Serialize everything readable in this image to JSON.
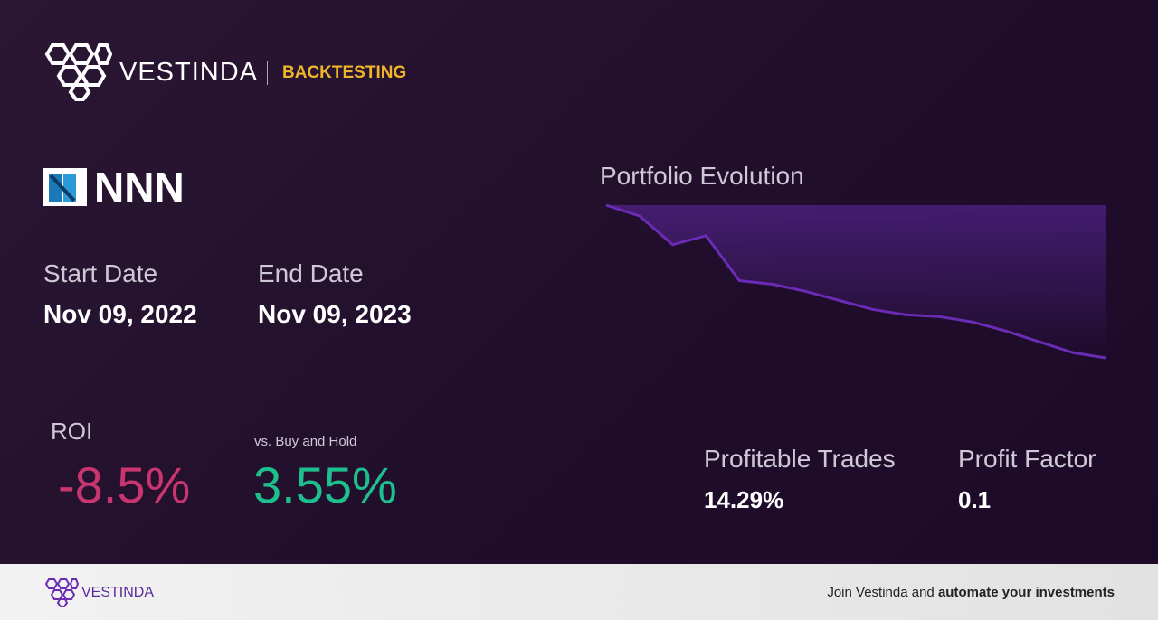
{
  "header": {
    "brand": "VESTINDA",
    "section": "BACKTESTING"
  },
  "ticker": "NNN",
  "start_date": {
    "label": "Start Date",
    "value": "Nov 09, 2022"
  },
  "end_date": {
    "label": "End Date",
    "value": "Nov 09, 2023"
  },
  "roi": {
    "label": "ROI",
    "value": "-8.5%"
  },
  "buy_hold": {
    "label": "vs. Buy and Hold",
    "value": "3.55%"
  },
  "chart_data": {
    "type": "area",
    "title": "Portfolio Evolution",
    "color": "#6a2bb5",
    "values": [
      100,
      99.4,
      97.8,
      98.3,
      95.8,
      95.6,
      95.2,
      94.7,
      94.2,
      93.9,
      93.8,
      93.5,
      93.0,
      92.4,
      91.8,
      91.5
    ]
  },
  "stats": [
    {
      "label": "Profitable Trades",
      "value": "14.29%"
    },
    {
      "label": "Profit Factor",
      "value": "0.1"
    }
  ],
  "footer": {
    "brand": "VESTINDA",
    "text": "Join Vestinda and ",
    "bold": "automate your investments"
  }
}
